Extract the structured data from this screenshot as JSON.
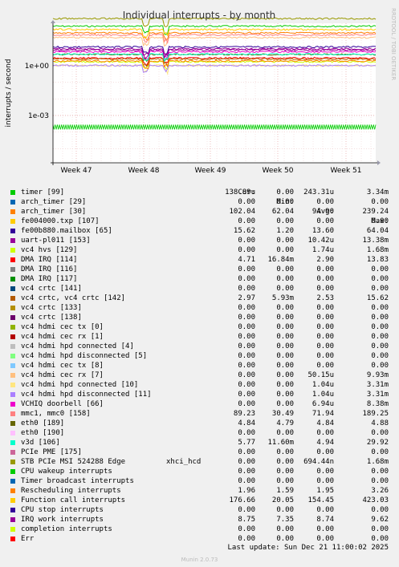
{
  "chart_data": {
    "type": "line",
    "title": "Individual interrupts - by month",
    "ylabel": "interrupts / second",
    "y_scale": "log",
    "y_ticks": [
      "1e+00",
      "1e-03"
    ],
    "x_ticks": [
      "Week 47",
      "Week 48",
      "Week 49",
      "Week 50",
      "Week 51"
    ],
    "grid": true,
    "series": [
      {
        "name": "timer [99]",
        "color": "#00cc00",
        "cur": "138.89u",
        "min": "0.00",
        "avg": "243.31u",
        "max": "3.34m"
      },
      {
        "name": "arch_timer [29]",
        "color": "#0066b3",
        "cur": "0.00",
        "min": "0.00",
        "avg": "0.00",
        "max": "0.00"
      },
      {
        "name": "arch_timer [30]",
        "color": "#ff8000",
        "cur": "102.04",
        "min": "62.04",
        "avg": "94.90",
        "max": "239.24"
      },
      {
        "name": "fe004000.txp [107]",
        "color": "#ffcc00",
        "cur": "0.00",
        "min": "0.00",
        "avg": "0.00",
        "max": "0.00"
      },
      {
        "name": "fe00b880.mailbox [65]",
        "color": "#330099",
        "cur": "15.62",
        "min": "1.20",
        "avg": "13.60",
        "max": "64.04"
      },
      {
        "name": "uart-pl011 [153]",
        "color": "#990099",
        "cur": "0.00",
        "min": "0.00",
        "avg": "10.42u",
        "max": "13.38m"
      },
      {
        "name": "vc4 hvs [129]",
        "color": "#ccff00",
        "cur": "0.00",
        "min": "0.00",
        "avg": "1.74u",
        "max": "1.68m"
      },
      {
        "name": "DMA IRQ [114]",
        "color": "#ff0000",
        "cur": "4.71",
        "min": "16.84m",
        "avg": "2.90",
        "max": "13.83"
      },
      {
        "name": "DMA IRQ [116]",
        "color": "#808080",
        "cur": "0.00",
        "min": "0.00",
        "avg": "0.00",
        "max": "0.00"
      },
      {
        "name": "DMA IRQ [117]",
        "color": "#008f00",
        "cur": "0.00",
        "min": "0.00",
        "avg": "0.00",
        "max": "0.00"
      },
      {
        "name": "vc4 crtc [141]",
        "color": "#00487d",
        "cur": "0.00",
        "min": "0.00",
        "avg": "0.00",
        "max": "0.00"
      },
      {
        "name": "vc4 crtc, vc4 crtc [142]",
        "color": "#b35a00",
        "cur": "2.97",
        "min": "5.93m",
        "avg": "2.53",
        "max": "15.62"
      },
      {
        "name": "vc4 crtc [133]",
        "color": "#b38f00",
        "cur": "0.00",
        "min": "0.00",
        "avg": "0.00",
        "max": "0.00"
      },
      {
        "name": "vc4 crtc [138]",
        "color": "#6b006b",
        "cur": "0.00",
        "min": "0.00",
        "avg": "0.00",
        "max": "0.00"
      },
      {
        "name": "vc4 hdmi cec tx [0]",
        "color": "#8fb300",
        "cur": "0.00",
        "min": "0.00",
        "avg": "0.00",
        "max": "0.00"
      },
      {
        "name": "vc4 hdmi cec rx [1]",
        "color": "#b30000",
        "cur": "0.00",
        "min": "0.00",
        "avg": "0.00",
        "max": "0.00"
      },
      {
        "name": "vc4 hdmi hpd connected [4]",
        "color": "#bebebe",
        "cur": "0.00",
        "min": "0.00",
        "avg": "0.00",
        "max": "0.00"
      },
      {
        "name": "vc4 hdmi hpd disconnected [5]",
        "color": "#80ff80",
        "cur": "0.00",
        "min": "0.00",
        "avg": "0.00",
        "max": "0.00"
      },
      {
        "name": "vc4 hdmi cec tx [8]",
        "color": "#80c9ff",
        "cur": "0.00",
        "min": "0.00",
        "avg": "0.00",
        "max": "0.00"
      },
      {
        "name": "vc4 hdmi cec rx [7]",
        "color": "#ffc080",
        "cur": "0.00",
        "min": "0.00",
        "avg": "50.15u",
        "max": "9.93m"
      },
      {
        "name": "vc4 hdmi hpd connected [10]",
        "color": "#ffe680",
        "cur": "0.00",
        "min": "0.00",
        "avg": "1.04u",
        "max": "3.31m"
      },
      {
        "name": "vc4 hdmi hpd disconnected [11]",
        "color": "#aa80ff",
        "cur": "0.00",
        "min": "0.00",
        "avg": "1.04u",
        "max": "3.31m"
      },
      {
        "name": "VCHIQ doorbell [66]",
        "color": "#ee00cc",
        "cur": "0.00",
        "min": "0.00",
        "avg": "6.94u",
        "max": "8.38m"
      },
      {
        "name": "mmc1, mmc0 [158]",
        "color": "#ff8080",
        "cur": "89.23",
        "min": "30.49",
        "avg": "71.94",
        "max": "189.25"
      },
      {
        "name": "eth0 [189]",
        "color": "#666600",
        "cur": "4.84",
        "min": "4.79",
        "avg": "4.84",
        "max": "4.88"
      },
      {
        "name": "eth0 [190]",
        "color": "#ffbfff",
        "cur": "0.00",
        "min": "0.00",
        "avg": "0.00",
        "max": "0.00"
      },
      {
        "name": "v3d [106]",
        "color": "#00ffcc",
        "cur": "5.77",
        "min": "11.60m",
        "avg": "4.94",
        "max": "29.92"
      },
      {
        "name": "PCIe PME [175]",
        "color": "#cc6699",
        "cur": "0.00",
        "min": "0.00",
        "avg": "0.00",
        "max": "0.00"
      },
      {
        "name": "STB PCIe MSI 524288 Edge",
        "extra": "xhci_hcd",
        "color": "#999900",
        "cur": "0.00",
        "min": "0.00",
        "avg": "694.44n",
        "max": "1.68m"
      },
      {
        "name": "CPU wakeup interrupts",
        "color": "#00cc00",
        "cur": "0.00",
        "min": "0.00",
        "avg": "0.00",
        "max": "0.00"
      },
      {
        "name": "Timer broadcast interrupts",
        "color": "#0066b3",
        "cur": "0.00",
        "min": "0.00",
        "avg": "0.00",
        "max": "0.00"
      },
      {
        "name": "Rescheduling interrupts",
        "color": "#ff8000",
        "cur": "1.96",
        "min": "1.59",
        "avg": "1.95",
        "max": "3.26"
      },
      {
        "name": "Function call interrupts",
        "color": "#ffcc00",
        "cur": "176.66",
        "min": "20.05",
        "avg": "154.45",
        "max": "423.03"
      },
      {
        "name": "CPU stop interrupts",
        "color": "#330099",
        "cur": "0.00",
        "min": "0.00",
        "avg": "0.00",
        "max": "0.00"
      },
      {
        "name": "IRQ work interrupts",
        "color": "#990099",
        "cur": "8.75",
        "min": "7.35",
        "avg": "8.74",
        "max": "9.62"
      },
      {
        "name": "completion interrupts",
        "color": "#ccff00",
        "cur": "0.00",
        "min": "0.00",
        "avg": "0.00",
        "max": "0.00"
      },
      {
        "name": "Err",
        "color": "#ff0000",
        "cur": "0.00",
        "min": "0.00",
        "avg": "0.00",
        "max": "0.00"
      }
    ]
  },
  "legend_header": {
    "cur": "Cur:",
    "min": "Min:",
    "avg": "Avg:",
    "max": "Max:"
  },
  "side_label": "RRDTOOL / TOBI OETIKER",
  "last_update": "Last update: Sun Dec 21 11:00:02 2025",
  "munin_version": "Munin 2.0.73"
}
